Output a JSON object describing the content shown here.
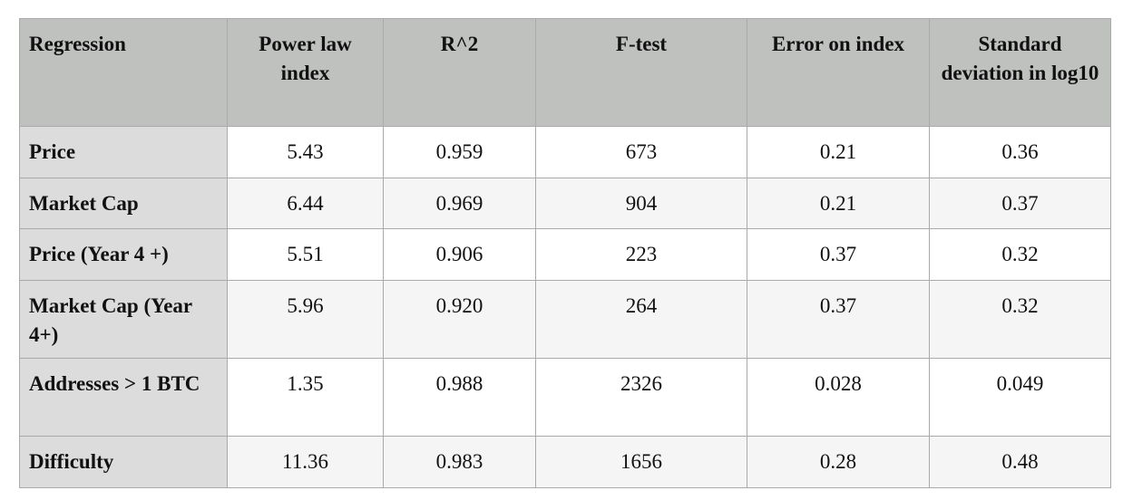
{
  "table": {
    "header": [
      "Regression",
      "Power law index",
      "R^2",
      "F-test",
      "Error on index",
      "Standard deviation in log10"
    ],
    "rows": [
      [
        "Price",
        "5.43",
        "0.959",
        "673",
        "0.21",
        "0.36"
      ],
      [
        "Market Cap",
        "6.44",
        "0.969",
        "904",
        "0.21",
        "0.37"
      ],
      [
        "Price (Year 4 +)",
        "5.51",
        "0.906",
        "223",
        "0.37",
        "0.32"
      ],
      [
        "Market Cap (Year 4+)",
        "5.96",
        "0.920",
        "264",
        "0.37",
        "0.32"
      ],
      [
        "Addresses > 1 BTC",
        "1.35",
        "0.988",
        "2326",
        "0.028",
        "0.049"
      ],
      [
        "Difficulty",
        "11.36",
        "0.983",
        "1656",
        "0.28",
        "0.48"
      ]
    ]
  }
}
